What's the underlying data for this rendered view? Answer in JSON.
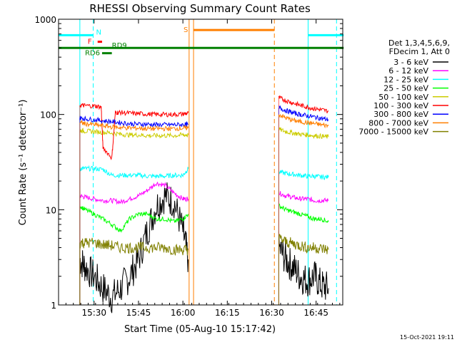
{
  "chart_data": {
    "type": "line",
    "title": "RHESSI Observing Summary Count Rates",
    "xlabel": "Start Time (05-Aug-10 15:17:42)",
    "ylabel": "Count Rate (s⁻¹ detector⁻¹)",
    "yscale": "log",
    "ylim": [
      1,
      1000
    ],
    "xlim_min": [
      15.3,
      16.9
    ],
    "x_ticks": [
      {
        "label": "15:30",
        "value": 15.5
      },
      {
        "label": "15:45",
        "value": 15.75
      },
      {
        "label": "16:00",
        "value": 16.0
      },
      {
        "label": "16:15",
        "value": 16.25
      },
      {
        "label": "16:30",
        "value": 16.5
      },
      {
        "label": "16:45",
        "value": 16.75
      }
    ],
    "y_ticks": [
      {
        "label": "1",
        "value": 1
      },
      {
        "label": "10",
        "value": 10
      },
      {
        "label": "100",
        "value": 100
      },
      {
        "label": "1000",
        "value": 1000
      }
    ],
    "legend_header": [
      "Det 1,3,4,5,6,9,",
      "FDecim 1, Att 0"
    ],
    "series": [
      {
        "name": "3 - 6 keV",
        "color": "#000000",
        "segments": [
          {
            "x": [
              15.42,
              15.45,
              15.5,
              15.55,
              15.6,
              15.65,
              15.7,
              15.75,
              15.8,
              15.85,
              15.9,
              15.95,
              16.0,
              16.03
            ],
            "y": [
              3,
              2.5,
              2,
              1.5,
              1.2,
              1.5,
              2,
              3,
              6,
              11,
              14,
              12,
              6,
              3
            ]
          },
          {
            "x": [
              16.54,
              16.58,
              16.62,
              16.66,
              16.7,
              16.74,
              16.78,
              16.82
            ],
            "y": [
              4,
              3,
              2.5,
              2,
              1.8,
              2,
              1.6,
              1.5
            ]
          }
        ]
      },
      {
        "name": "6 - 12 keV",
        "color": "#ff00ff",
        "segments": [
          {
            "x": [
              15.42,
              15.45,
              15.5,
              15.55,
              15.6,
              15.65,
              15.7,
              15.75,
              15.8,
              15.85,
              15.9,
              15.95,
              16.0,
              16.03
            ],
            "y": [
              14,
              13.5,
              13,
              12.5,
              12.5,
              12,
              13,
              14,
              16,
              19,
              18,
              15,
              13,
              13
            ]
          },
          {
            "x": [
              16.54,
              16.58,
              16.62,
              16.66,
              16.7,
              16.74,
              16.78,
              16.82
            ],
            "y": [
              15,
              14,
              13.5,
              13,
              13,
              12.5,
              12.5,
              12.5
            ]
          }
        ]
      },
      {
        "name": "12 - 25 keV",
        "color": "#00ffff",
        "segments": [
          {
            "x": [
              15.42,
              15.45,
              15.5,
              15.55,
              15.6,
              15.65,
              15.7,
              15.75,
              15.8,
              15.85,
              15.9,
              15.95,
              16.0,
              16.03
            ],
            "y": [
              27,
              27,
              27,
              26.5,
              23,
              23,
              23,
              23,
              22.5,
              22.5,
              22.5,
              23,
              23,
              27
            ]
          },
          {
            "x": [
              16.54,
              16.58,
              16.62,
              16.66,
              16.7,
              16.74,
              16.78,
              16.82
            ],
            "y": [
              25,
              24,
              23.5,
              23,
              22.5,
              22.5,
              22,
              22
            ]
          }
        ]
      },
      {
        "name": "25 - 50 keV",
        "color": "#00ff00",
        "segments": [
          {
            "x": [
              15.42,
              15.45,
              15.5,
              15.55,
              15.6,
              15.65,
              15.7,
              15.75,
              15.8,
              15.85,
              15.9,
              15.95,
              16.0,
              16.03
            ],
            "y": [
              11,
              10,
              9,
              8,
              7,
              6,
              8,
              9,
              9,
              8,
              8,
              7.5,
              8,
              9
            ]
          },
          {
            "x": [
              16.54,
              16.58,
              16.62,
              16.66,
              16.7,
              16.74,
              16.78,
              16.82
            ],
            "y": [
              11,
              10,
              9.5,
              9,
              8.5,
              8,
              8,
              7.5
            ]
          }
        ]
      },
      {
        "name": "50 - 100 keV",
        "color": "#cccc00",
        "segments": [
          {
            "x": [
              15.42,
              15.45,
              15.5,
              15.55,
              15.6,
              15.65,
              15.7,
              15.75,
              15.8,
              15.85,
              15.9,
              15.95,
              16.0,
              16.03
            ],
            "y": [
              68,
              67,
              66,
              65,
              64,
              62,
              61,
              61,
              60,
              60,
              60,
              60,
              61,
              61
            ]
          },
          {
            "x": [
              16.54,
              16.58,
              16.62,
              16.66,
              16.7,
              16.74,
              16.78,
              16.82
            ],
            "y": [
              70,
              66,
              64,
              62,
              61,
              60,
              59,
              58
            ]
          }
        ]
      },
      {
        "name": "100 - 300 keV",
        "color": "#ff0000",
        "segments": [
          {
            "x": [
              15.42,
              15.45,
              15.5,
              15.54,
              15.55,
              15.6,
              15.62,
              15.65,
              15.7,
              15.75,
              15.8,
              15.85,
              15.9,
              15.95,
              16.0,
              16.03
            ],
            "y": [
              125,
              124,
              123,
              120,
              45,
              35,
              105,
              105,
              103,
              102,
              101,
              100,
              100,
              100,
              101,
              104
            ]
          },
          {
            "x": [
              16.54,
              16.58,
              16.62,
              16.66,
              16.7,
              16.74,
              16.78,
              16.82
            ],
            "y": [
              150,
              140,
              132,
              125,
              120,
              115,
              112,
              108
            ]
          }
        ]
      },
      {
        "name": "300 - 800 keV",
        "color": "#0000ff",
        "segments": [
          {
            "x": [
              15.42,
              15.45,
              15.5,
              15.55,
              15.6,
              15.65,
              15.7,
              15.75,
              15.8,
              15.85,
              15.9,
              15.95,
              16.0,
              16.03
            ],
            "y": [
              92,
              90,
              88,
              86,
              84,
              82,
              80,
              79,
              79,
              78,
              78,
              78,
              78,
              78
            ]
          },
          {
            "x": [
              16.54,
              16.58,
              16.62,
              16.66,
              16.7,
              16.74,
              16.78,
              16.82
            ],
            "y": [
              118,
              110,
              104,
              100,
              97,
              94,
              91,
              88
            ]
          }
        ]
      },
      {
        "name": "800 - 7000 keV",
        "color": "#ff7f00",
        "segments": [
          {
            "x": [
              15.42,
              15.45,
              15.5,
              15.55,
              15.6,
              15.65,
              15.7,
              15.75,
              15.8,
              15.85,
              15.9,
              15.95,
              16.0,
              16.03
            ],
            "y": [
              82,
              80,
              78,
              76,
              74,
              73,
              72,
              72,
              71,
              71,
              71,
              71,
              72,
              72
            ]
          },
          {
            "x": [
              16.54,
              16.58,
              16.62,
              16.66,
              16.7,
              16.74,
              16.78,
              16.82
            ],
            "y": [
              100,
              92,
              87,
              84,
              82,
              80,
              78,
              76
            ]
          }
        ]
      },
      {
        "name": "7000 - 15000 keV",
        "color": "#808000",
        "segments": [
          {
            "x": [
              15.42,
              15.45,
              15.5,
              15.55,
              15.6,
              15.65,
              15.7,
              15.75,
              15.8,
              15.85,
              15.9,
              15.95,
              16.0,
              16.03
            ],
            "y": [
              4.5,
              4.5,
              4.5,
              4.3,
              4.2,
              4,
              4,
              4,
              4,
              4,
              4,
              3.8,
              3.8,
              3.8
            ]
          },
          {
            "x": [
              16.54,
              16.58,
              16.62,
              16.66,
              16.7,
              16.74,
              16.78,
              16.82
            ],
            "y": [
              5,
              4.6,
              4.4,
              4.2,
              4,
              4,
              3.9,
              3.8
            ]
          }
        ]
      }
    ],
    "vlines": [
      {
        "x": 15.42,
        "color": "#00ffff",
        "style": "solid",
        "name": "night-end-1"
      },
      {
        "x": 15.495,
        "color": "#00ffff",
        "style": "dashed",
        "name": "saa-1"
      },
      {
        "x": 16.035,
        "color": "#ff7f00",
        "style": "solid",
        "name": "saa-start"
      },
      {
        "x": 16.06,
        "color": "#ff7f00",
        "style": "solid",
        "name": "saa-start-2"
      },
      {
        "x": 16.515,
        "color": "#ff7f00",
        "style": "dashed",
        "name": "saa-end"
      },
      {
        "x": 16.705,
        "color": "#00ffff",
        "style": "solid",
        "name": "night-start-2"
      },
      {
        "x": 16.865,
        "color": "#00ffff",
        "style": "dashed",
        "name": "night-end-2"
      }
    ],
    "flag_bars": [
      {
        "label": "",
        "color": "#00ffff",
        "x1": 15.3,
        "x2": 15.495,
        "y": 680
      },
      {
        "label": "",
        "color": "#00ffff",
        "x1": 16.705,
        "x2": 16.905,
        "y": 680
      },
      {
        "label": "N",
        "color": "#00ffff",
        "x1": 15.495,
        "x2": 15.495,
        "y": 680
      },
      {
        "label": "F",
        "color": "#ff0000",
        "x1": 15.52,
        "x2": 15.545,
        "y": 580
      },
      {
        "label": "S",
        "color": "#ff7f00",
        "x1": 16.06,
        "x2": 16.515,
        "y": 770
      },
      {
        "label": "RD9",
        "color": "#008000",
        "x1": 15.3,
        "x2": 16.905,
        "y": 500
      },
      {
        "label": "RD6",
        "color": "#008000",
        "x1": 15.545,
        "x2": 15.6,
        "y": 440
      }
    ],
    "footer": "15-Oct-2021 19:11"
  }
}
